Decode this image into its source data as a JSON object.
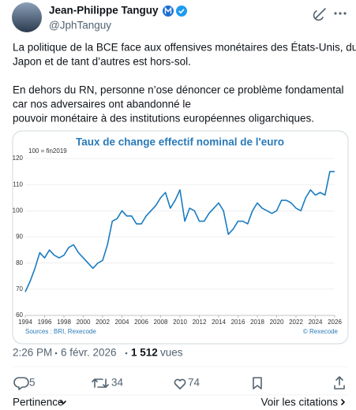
{
  "author": {
    "name": "Jean-Philippe Tanguy",
    "handle": "@JphTanguy"
  },
  "post": {
    "paragraphs": [
      [
        "La politique de la BCE face aux offensives monétaires des États-Unis, du",
        "Japon et de tant d’autres est hors-sol."
      ],
      [
        "En dehors du RN, personne n’ose dénoncer ce problème fondamental",
        "car nos adversaires ont abandonné le",
        "pouvoir monétaire à des institutions européennes oligarchiques."
      ]
    ]
  },
  "chart_data": {
    "type": "line",
    "title": "Taux de change effectif nominal de l'euro",
    "subtitle": "100 = fin2019",
    "source": "Sources : BRI, Rexecode",
    "credit": "© Rexecode",
    "x": [
      1994,
      1994.5,
      1995,
      1995.5,
      1996,
      1996.5,
      1997,
      1997.5,
      1998,
      1998.5,
      1999,
      1999.5,
      2000,
      2000.5,
      2001,
      2001.5,
      2002,
      2002.5,
      2003,
      2003.5,
      2004,
      2004.5,
      2005,
      2005.5,
      2006,
      2006.5,
      2007,
      2007.5,
      2008,
      2008.5,
      2009,
      2009.5,
      2010,
      2010.5,
      2011,
      2011.5,
      2012,
      2012.5,
      2013,
      2013.5,
      2014,
      2014.5,
      2015,
      2015.5,
      2016,
      2016.5,
      2017,
      2017.5,
      2018,
      2018.5,
      2019,
      2019.5,
      2020,
      2020.5,
      2021,
      2021.5,
      2022,
      2022.5,
      2023,
      2023.5,
      2024,
      2024.5,
      2025,
      2025.5,
      2026
    ],
    "series": [
      {
        "color": "#1a7cc1",
        "values": [
          69,
          73,
          78,
          84,
          82,
          85,
          83,
          82,
          83,
          86,
          87,
          84,
          82,
          80,
          78,
          80,
          81,
          87,
          96,
          97,
          100,
          98,
          98,
          95,
          95,
          98,
          100,
          102,
          105,
          107,
          101,
          104,
          108,
          96,
          101,
          100,
          96,
          96,
          99,
          101,
          103,
          100,
          91,
          93,
          96,
          96,
          95,
          100,
          103,
          101,
          100,
          99,
          100,
          104,
          104,
          103,
          101,
          100,
          105,
          108,
          106,
          107,
          106,
          115,
          115
        ]
      }
    ],
    "xlim": [
      1994,
      2026
    ],
    "xticks": [
      1994,
      1996,
      1998,
      2000,
      2002,
      2004,
      2006,
      2008,
      2010,
      2012,
      2014,
      2016,
      2018,
      2020,
      2022,
      2024,
      2026
    ],
    "ylim": [
      60,
      120
    ],
    "yticks": [
      60,
      70,
      80,
      90,
      100,
      110,
      120
    ],
    "grid": true
  },
  "footer": {
    "time": "2:26 PM",
    "date": "6 févr. 2026",
    "views": "1 512",
    "views_label": "vues"
  },
  "actions": {
    "replies": 5,
    "reposts": 34,
    "likes": 74
  },
  "bottom": {
    "sort": "Pertinence",
    "quotes": "Voir les citations"
  }
}
